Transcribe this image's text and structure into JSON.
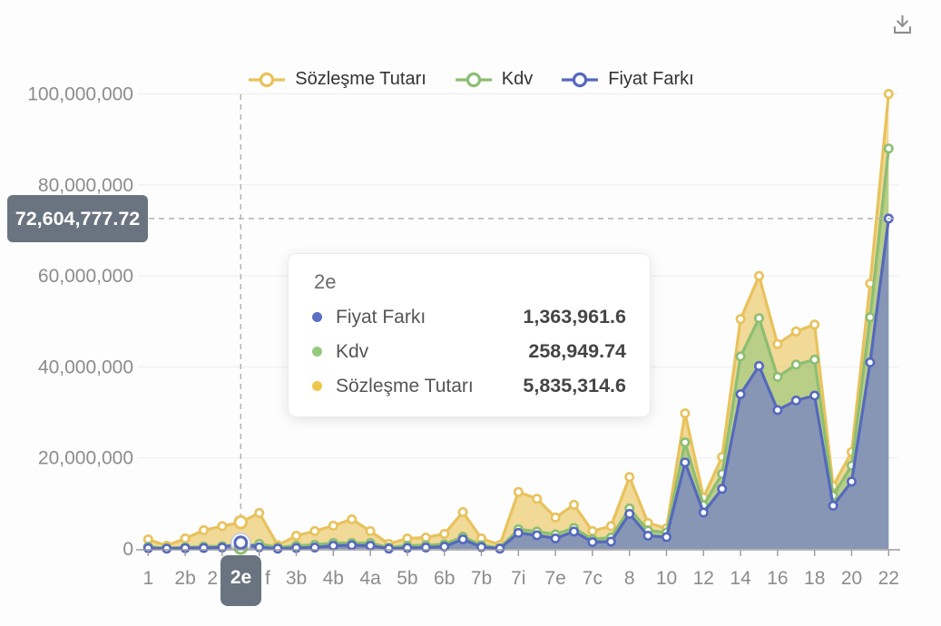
{
  "toolbar": {
    "download_icon": "download"
  },
  "legend": {
    "items": [
      {
        "label": "Sözleşme Tutarı",
        "color": "#E8C25C"
      },
      {
        "label": "Kdv",
        "color": "#8CBE72"
      },
      {
        "label": "Fiyat Farkı",
        "color": "#5569BD"
      }
    ]
  },
  "y_axis": {
    "tick_labels": [
      "0",
      "20,000,000",
      "40,000,000",
      "60,000,000",
      "80,000,000",
      "100,000,000"
    ],
    "pointer_value": "72,604,777.72"
  },
  "x_axis": {
    "pointer_label": "2e"
  },
  "tooltip": {
    "title": "2e",
    "rows": [
      {
        "label": "Fiyat Farkı",
        "value": "1,363,961.6",
        "color": "#5B6FC4"
      },
      {
        "label": "Kdv",
        "value": "258,949.74",
        "color": "#95C97B"
      },
      {
        "label": "Sözleşme Tutarı",
        "value": "5,835,314.6",
        "color": "#EFC64B"
      }
    ]
  },
  "chart_data": {
    "type": "area",
    "categories": [
      "1",
      "",
      "2b",
      "",
      "2",
      "2e",
      "f",
      "",
      "3b",
      "",
      "4b",
      "",
      "4a",
      "",
      "5b",
      "",
      "6b",
      "",
      "7b",
      "",
      "7i",
      "",
      "7e",
      "",
      "7c",
      "",
      "8",
      "",
      "10",
      "",
      "12",
      "",
      "14",
      "",
      "16",
      "",
      "18",
      "",
      "20",
      "",
      "22"
    ],
    "highlighted_index": 5,
    "ylim": [
      0,
      100000000
    ],
    "y_ticks": [
      0,
      20000000,
      40000000,
      60000000,
      80000000,
      100000000
    ],
    "pointer": {
      "x_index": 5,
      "y_value": 72604777.72
    },
    "series": [
      {
        "name": "Sözleşme Tutarı",
        "line_color": "#E8C25C",
        "fill_color": "rgba(234,196,90,0.62)",
        "values": [
          2100000,
          700000,
          2300000,
          4100000,
          5000000,
          5835314.6,
          7900000,
          800000,
          2900000,
          3900000,
          5100000,
          6500000,
          3900000,
          1100000,
          2300000,
          2500000,
          3300000,
          8100000,
          2300000,
          900000,
          12500000,
          11000000,
          6900000,
          9700000,
          3900000,
          5000000,
          15800000,
          5700000,
          4500000,
          29800000,
          11300000,
          20200000,
          50500000,
          60000000,
          45000000,
          47800000,
          49300000,
          13800000,
          21300000,
          58300000,
          100000000
        ]
      },
      {
        "name": "Kdv",
        "line_color": "#8CBE72",
        "fill_color": "rgba(150,198,123,0.62)",
        "values": [
          500000,
          150000,
          350000,
          500000,
          600000,
          258949.74,
          1100000,
          300000,
          700000,
          900000,
          1300000,
          1300000,
          1300000,
          300000,
          700000,
          800000,
          1000000,
          2700000,
          800000,
          200000,
          4300000,
          3800000,
          3200000,
          4600000,
          2100000,
          2500000,
          8900000,
          4000000,
          3600000,
          23400000,
          9600000,
          16500000,
          42300000,
          50700000,
          37800000,
          40500000,
          41600000,
          11700000,
          18300000,
          50900000,
          88000000
        ]
      },
      {
        "name": "Fiyat Farkı",
        "line_color": "#5569BD",
        "fill_color": "rgba(116,129,201,0.72)",
        "values": [
          150000,
          50000,
          150000,
          200000,
          300000,
          1363961.6,
          350000,
          50000,
          200000,
          300000,
          700000,
          800000,
          700000,
          50000,
          200000,
          300000,
          500000,
          2100000,
          400000,
          50000,
          3500000,
          3000000,
          2300000,
          3800000,
          1500000,
          1600000,
          7700000,
          2900000,
          2600000,
          19000000,
          8000000,
          13200000,
          34000000,
          40200000,
          30500000,
          32600000,
          33700000,
          9500000,
          14800000,
          41000000,
          72604777.72
        ]
      }
    ]
  }
}
